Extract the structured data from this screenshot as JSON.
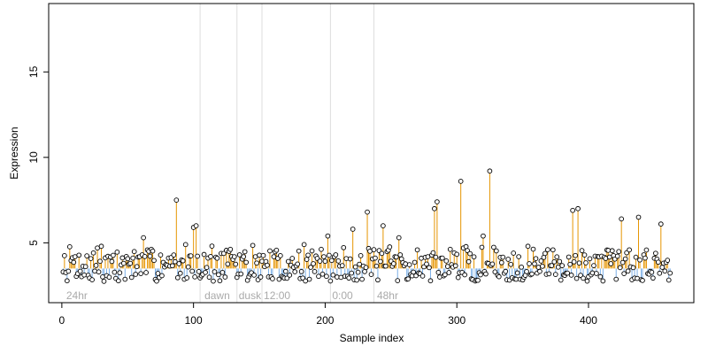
{
  "chart_data": {
    "type": "scatter",
    "title": "",
    "xlabel": "Sample index",
    "ylabel": "Expression",
    "xlim": [
      -10,
      480
    ],
    "ylim": [
      1.5,
      19
    ],
    "xticks": [
      0,
      100,
      200,
      300,
      400
    ],
    "yticks": [
      5,
      10,
      15
    ],
    "baseline": 3.5,
    "colors": {
      "above": "#e69500",
      "below": "#7aaee6",
      "divider": "#dddddd",
      "point_fill": "#ffffff",
      "point_stroke": "#000000"
    },
    "period_boundaries": [
      105,
      133,
      152,
      204,
      237
    ],
    "period_labels": [
      {
        "label": "24hr",
        "x": 2
      },
      {
        "label": "dawn",
        "x": 107
      },
      {
        "label": "dusk",
        "x": 133
      },
      {
        "label": "12:00",
        "x": 152
      },
      {
        "label": "0:00",
        "x": 204
      },
      {
        "label": "48hr",
        "x": 238
      }
    ],
    "peaks": [
      [
        87,
        7.5
      ],
      [
        100,
        5.9
      ],
      [
        102,
        6.0
      ],
      [
        62,
        5.3
      ],
      [
        27,
        4.7
      ],
      [
        30,
        4.8
      ],
      [
        184,
        4.9
      ],
      [
        202,
        5.4
      ],
      [
        221,
        5.8
      ],
      [
        232,
        6.8
      ],
      [
        244,
        6.0
      ],
      [
        256,
        5.3
      ],
      [
        283,
        7.0
      ],
      [
        285,
        7.4
      ],
      [
        303,
        8.6
      ],
      [
        305,
        4.7
      ],
      [
        320,
        5.4
      ],
      [
        325,
        9.2
      ],
      [
        388,
        6.9
      ],
      [
        392,
        7.0
      ],
      [
        425,
        6.4
      ],
      [
        438,
        6.5
      ],
      [
        455,
        6.1
      ]
    ],
    "series_seed": 7,
    "n_points": 462
  }
}
